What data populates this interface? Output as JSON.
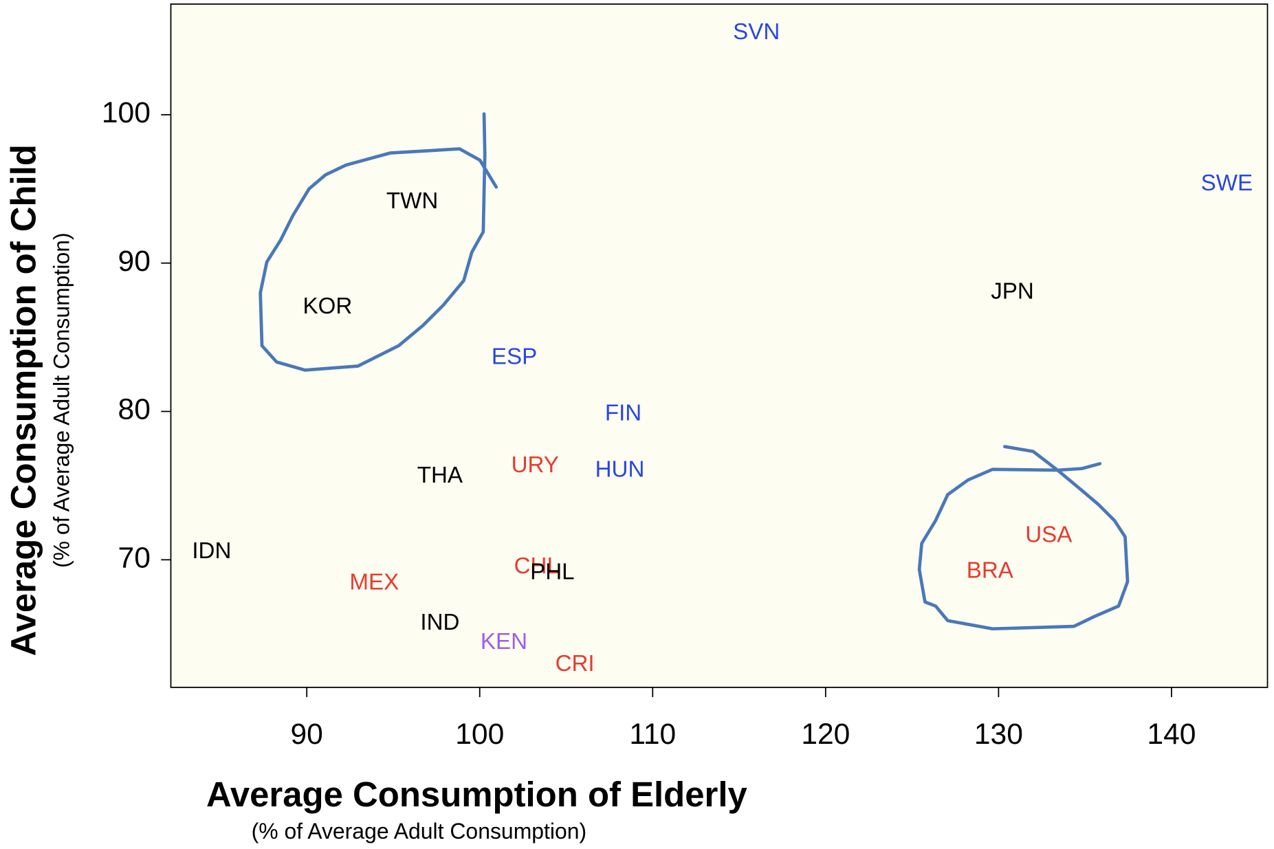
{
  "chart_data": {
    "type": "scatter",
    "x_label": "Average Consumption of Elderly",
    "x_sublabel": "(% of Average Adult Consumption)",
    "y_label": "Average Consumption of Child",
    "y_sublabel": "(% of Average Adult Consumption)",
    "categories": [
      "SVN",
      "SWE",
      "TWN",
      "KOR",
      "JPN",
      "ESP",
      "FIN",
      "URY",
      "HUN",
      "THA",
      "IDN",
      "USA",
      "CHL",
      "PHL",
      "BRA",
      "MEX",
      "IND",
      "KEN",
      "CRI"
    ],
    "x": [
      116.0,
      143.2,
      96.1,
      91.2,
      130.8,
      102.0,
      108.3,
      103.2,
      108.1,
      97.7,
      84.5,
      132.9,
      103.3,
      104.2,
      129.5,
      93.9,
      97.7,
      101.4,
      105.5
    ],
    "y": [
      105.5,
      95.3,
      94.1,
      87.0,
      88.0,
      83.6,
      79.8,
      76.3,
      76.0,
      75.6,
      70.5,
      71.6,
      69.5,
      69.1,
      69.2,
      68.4,
      65.7,
      64.4,
      62.9
    ],
    "colors": [
      "#2946e0",
      "#2946e0",
      "#000000",
      "#000000",
      "#000000",
      "#2946e0",
      "#2946e0",
      "#e63b2e",
      "#2946e0",
      "#000000",
      "#000000",
      "#e63b2e",
      "#e63b2e",
      "#000000",
      "#e63b2e",
      "#e63b2e",
      "#000000",
      "#9d5fe6",
      "#e63b2e"
    ],
    "xlim": [
      82.14,
      145.55
    ],
    "ylim": [
      61.4,
      107.46
    ],
    "xticks": [
      90,
      100,
      110,
      120,
      130,
      140
    ],
    "yticks": [
      70,
      80,
      90,
      100
    ],
    "plot_background": "#fefdf2"
  }
}
